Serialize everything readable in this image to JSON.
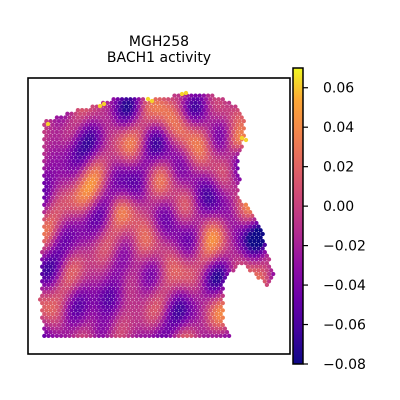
{
  "chart_data": {
    "type": "heatmap",
    "title": "MGH258",
    "subtitle": "BACH1 activity",
    "colorbar": {
      "cmap": "plasma",
      "vmin": -0.08,
      "vmax": 0.07,
      "ticks": [
        0.06,
        0.04,
        0.02,
        0.0,
        -0.02,
        -0.04,
        -0.06,
        -0.08
      ],
      "tick_labels": [
        "0.06",
        "0.04",
        "0.02",
        "0.00",
        "−0.02",
        "−0.04",
        "−0.06",
        "−0.08"
      ]
    },
    "grid": false
  }
}
